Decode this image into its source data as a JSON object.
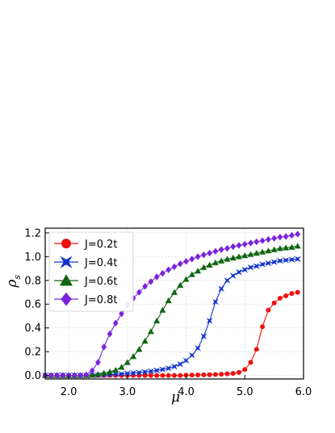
{
  "chart_data": {
    "type": "line",
    "xlabel": "μ",
    "ylabel": "ρ",
    "ylabel_sub": "s",
    "xlim": [
      1.6,
      6.0
    ],
    "ylim": [
      -0.03,
      1.24
    ],
    "xticks": [
      2.0,
      3.0,
      4.0,
      5.0,
      6.0
    ],
    "xtick_labels": [
      "2.0",
      "3.0",
      "4.0",
      "5.0",
      "6.0"
    ],
    "yticks": [
      0.0,
      0.2,
      0.4,
      0.6,
      0.8,
      1.0,
      1.2
    ],
    "ytick_labels": [
      "0.0",
      "0.2",
      "0.4",
      "0.6",
      "0.8",
      "1.0",
      "1.2"
    ],
    "grid": true,
    "legend_position": "top-left",
    "x": [
      1.6,
      1.7,
      1.8,
      1.9,
      2.0,
      2.1,
      2.2,
      2.3,
      2.4,
      2.5,
      2.6,
      2.7,
      2.8,
      2.9,
      3.0,
      3.1,
      3.2,
      3.3,
      3.4,
      3.5,
      3.6,
      3.7,
      3.8,
      3.9,
      4.0,
      4.1,
      4.2,
      4.3,
      4.4,
      4.5,
      4.6,
      4.7,
      4.8,
      4.9,
      5.0,
      5.1,
      5.2,
      5.3,
      5.4,
      5.5,
      5.6,
      5.7,
      5.8,
      5.9
    ],
    "series": [
      {
        "name": "J=0.2t",
        "color": "#ee1111",
        "marker": "circle",
        "values": [
          0,
          0,
          0,
          0,
          0,
          0,
          0,
          0,
          0,
          0,
          0,
          0,
          0,
          0,
          0,
          0,
          0,
          0,
          0,
          0,
          0,
          0,
          0,
          0,
          0.002,
          0.003,
          0.004,
          0.005,
          0.006,
          0.008,
          0.01,
          0.013,
          0.017,
          0.025,
          0.05,
          0.11,
          0.22,
          0.41,
          0.55,
          0.61,
          0.65,
          0.67,
          0.69,
          0.7
        ]
      },
      {
        "name": "J=0.4t",
        "color": "#1133cc",
        "marker": "star",
        "values": [
          0,
          0,
          0,
          0,
          0,
          0,
          0,
          0,
          0,
          0.002,
          0.004,
          0.007,
          0.01,
          0.013,
          0.016,
          0.02,
          0.024,
          0.029,
          0.035,
          0.042,
          0.05,
          0.06,
          0.075,
          0.095,
          0.125,
          0.17,
          0.23,
          0.33,
          0.46,
          0.62,
          0.73,
          0.8,
          0.84,
          0.87,
          0.89,
          0.91,
          0.92,
          0.935,
          0.945,
          0.955,
          0.965,
          0.97,
          0.975,
          0.98
        ]
      },
      {
        "name": "J=0.6t",
        "color": "#116611",
        "marker": "triangle",
        "values": [
          0,
          0,
          0,
          0,
          0,
          0,
          0,
          0,
          0.005,
          0.01,
          0.02,
          0.03,
          0.045,
          0.07,
          0.11,
          0.16,
          0.22,
          0.29,
          0.37,
          0.46,
          0.55,
          0.63,
          0.7,
          0.76,
          0.81,
          0.85,
          0.88,
          0.91,
          0.93,
          0.95,
          0.965,
          0.98,
          0.99,
          1.0,
          1.01,
          1.02,
          1.03,
          1.04,
          1.05,
          1.06,
          1.07,
          1.075,
          1.08,
          1.09
        ]
      },
      {
        "name": "J=0.8t",
        "color": "#7a22dd",
        "marker": "diamond",
        "values": [
          0,
          0,
          0,
          0,
          0,
          0,
          0,
          0.005,
          0.04,
          0.11,
          0.24,
          0.35,
          0.44,
          0.52,
          0.59,
          0.65,
          0.7,
          0.75,
          0.79,
          0.83,
          0.86,
          0.89,
          0.915,
          0.94,
          0.96,
          0.98,
          1.0,
          1.015,
          1.03,
          1.045,
          1.06,
          1.07,
          1.085,
          1.095,
          1.105,
          1.115,
          1.125,
          1.135,
          1.145,
          1.155,
          1.165,
          1.17,
          1.18,
          1.19
        ]
      }
    ]
  }
}
